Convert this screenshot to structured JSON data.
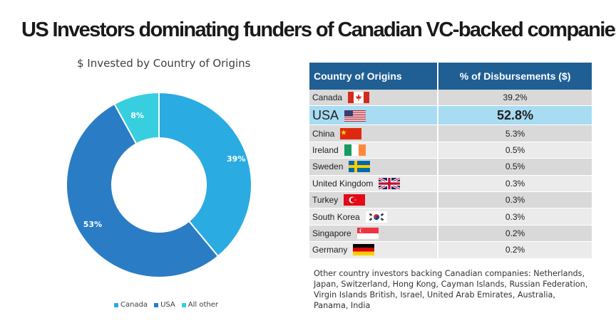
{
  "page_title": "US Investors dominating funders of Canadian VC-backed companies",
  "colors": {
    "canada": "#2aabe2",
    "usa": "#2a7dc4",
    "other": "#37cfe0",
    "header": "#1f5f93",
    "highlight": "#a8dcf2"
  },
  "chart_data": {
    "type": "pie",
    "title": "$ Invested by Country of Origins",
    "donut": true,
    "slices": [
      {
        "name": "Canada",
        "value": 39,
        "label": "39%"
      },
      {
        "name": "USA",
        "value": 53,
        "label": "53%"
      },
      {
        "name": "All other",
        "value": 8,
        "label": "8%"
      }
    ],
    "legend_position": "bottom"
  },
  "table": {
    "headers": [
      "Country of Origins",
      "% of Disbursements ($)"
    ],
    "rows": [
      {
        "country": "Canada",
        "flag": "canada-flag",
        "value": "39.2%"
      },
      {
        "country": "USA",
        "flag": "usa-flag",
        "value": "52.8%",
        "highlight": true
      },
      {
        "country": "China",
        "flag": "china-flag",
        "value": "5.3%"
      },
      {
        "country": "Ireland",
        "flag": "ireland-flag",
        "value": "0.5%"
      },
      {
        "country": "Sweden",
        "flag": "sweden-flag",
        "value": "0.5%"
      },
      {
        "country": "United Kingdom",
        "flag": "uk-flag",
        "value": "0.3%"
      },
      {
        "country": "Turkey",
        "flag": "turkey-flag",
        "value": "0.3%"
      },
      {
        "country": "South Korea",
        "flag": "south-korea-flag",
        "value": "0.3%"
      },
      {
        "country": "Singapore",
        "flag": "singapore-flag",
        "value": "0.2%"
      },
      {
        "country": "Germany",
        "flag": "germany-flag",
        "value": "0.2%"
      }
    ]
  },
  "note": "Other country investors backing Canadian companies: Netherlands, Japan, Switzerland, Hong Kong, Cayman Islands, Russian Federation, Virgin Islands British, Israel, United Arab Emirates, Australia, Panama, India"
}
